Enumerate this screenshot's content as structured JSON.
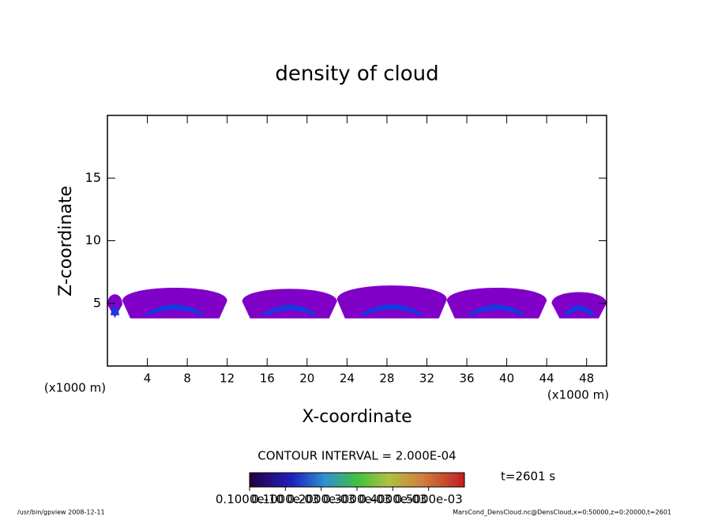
{
  "chart_data": {
    "type": "contour",
    "title": "density of cloud",
    "x_label": "X-coordinate",
    "y_label": "Z-coordinate",
    "x_unit": "(x1000 m)",
    "y_unit": "(x1000 m)",
    "xlim": [
      0,
      50
    ],
    "ylim": [
      0,
      20
    ],
    "xticks": [
      4,
      8,
      12,
      16,
      20,
      24,
      28,
      32,
      36,
      40,
      44,
      48
    ],
    "yticks": [
      5,
      10,
      15
    ],
    "regions": [
      {
        "x": [
          0,
          1.5
        ],
        "z": [
          3.8,
          6
        ]
      },
      {
        "x": [
          1.5,
          12
        ],
        "z": [
          3.8,
          6.6
        ]
      },
      {
        "x": [
          13.5,
          23
        ],
        "z": [
          3.8,
          6.5
        ]
      },
      {
        "x": [
          23,
          34
        ],
        "z": [
          3.8,
          6.8
        ]
      },
      {
        "x": [
          34,
          44
        ],
        "z": [
          3.8,
          6.6
        ]
      },
      {
        "x": [
          44.5,
          50
        ],
        "z": [
          3.8,
          6.2
        ]
      }
    ],
    "outer_color": "#8000c8",
    "core_color": "#1838e0",
    "contour_interval": "CONTOUR INTERVAL = 2.000E-04",
    "time_label": "t=2601 s",
    "clim": [
      0,
      0.0006
    ],
    "colorbar_ticks": [
      {
        "value": 1e-11,
        "label": "0.1000e-10"
      },
      {
        "value": 0.0001,
        "label": "0.1000e-03"
      },
      {
        "value": 0.0002,
        "label": "0.2000e-03"
      },
      {
        "value": 0.0003,
        "label": "0.3000e-03"
      },
      {
        "value": 0.0004,
        "label": "0.4000e-03"
      },
      {
        "value": 0.0005,
        "label": "0.5000e-03"
      }
    ],
    "footer_left": "/usr/bin/gpview   2008-12-11",
    "footer_right": "MarsCond_DensCloud.nc@DensCloud,x=0:50000,z=0:20000,t=2601"
  }
}
